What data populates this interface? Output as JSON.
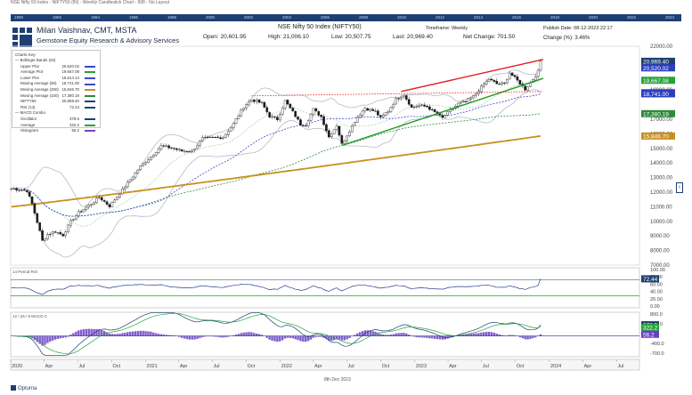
{
  "top_caption": "NSE Nifty 50 Index - NIFTY50 (IN) - Weekly Candlestick Chart - 998 - No Layout",
  "year_bar": [
    "1990",
    "1992",
    "1994",
    "1996",
    "1998",
    "2000",
    "2002",
    "2004",
    "2006",
    "2008",
    "2010",
    "2012",
    "2014",
    "2016",
    "2018",
    "2020",
    "2022",
    "2024"
  ],
  "header": {
    "author": "Milan Vaishnav, CMT, MSTA",
    "firm": "Gemstone Equity Research & Advisory Services",
    "open": "Open: 20,601.95",
    "high": "High: 21,006.10",
    "low": "Low: 20,507.75",
    "last": "Last: 20,969.40",
    "net_change": "Net Change: 701.50",
    "title": "NSE Nifty 50 Index (NIFTY50)",
    "timeframe": "Timeframe: Weekly",
    "publish_date": "Publish Date: 08-12-2023 22:17",
    "change_pct": "Change (%): 3.46%"
  },
  "legend": {
    "title": "Charts Key",
    "groups": [
      {
        "name": "Bollinger Bands (20)",
        "rows": [
          {
            "label": "Upper Plot",
            "value": "20,520.02",
            "color": "#3b47c8"
          },
          {
            "label": "Average Plot",
            "value": "19,667.08",
            "color": "#24a33a"
          },
          {
            "label": "Lower Plot",
            "value": "18,814.14",
            "color": "#3b47c8"
          }
        ]
      },
      {
        "name": "",
        "rows": [
          {
            "label": "Moving Average (50)",
            "value": "18,741.00",
            "color": "#3b47c8"
          },
          {
            "label": "Moving Average (200)",
            "value": "15,846.70",
            "color": "#c9901e"
          },
          {
            "label": "Moving Average (100)",
            "value": "17,380.19",
            "color": "#2e8b3a"
          },
          {
            "label": "NIFTY50",
            "value": "20,969.40",
            "color": "#1d3f73"
          },
          {
            "label": "RSI (14)",
            "value": "72.44",
            "color": "#1d3f73"
          }
        ]
      },
      {
        "name": "MACD Combo",
        "rows": [
          {
            "label": "Oscillator",
            "value": "378.5",
            "color": "#1d3f73"
          },
          {
            "label": "Average",
            "value": "322.2",
            "color": "#24a33a"
          },
          {
            "label": "Histogram",
            "value": "56.2",
            "color": "#7b3fc0"
          }
        ]
      }
    ]
  },
  "price_axis_labels": [
    {
      "text": "22000.00",
      "v": 22000
    },
    {
      "text": "20969.40",
      "v": 20969.4
    },
    {
      "text": "19000.00",
      "v": 19000
    },
    {
      "text": "17000.00",
      "v": 17000
    },
    {
      "text": "16000.00",
      "v": 16000
    },
    {
      "text": "15000.00",
      "v": 15000
    },
    {
      "text": "14000.00",
      "v": 14000
    },
    {
      "text": "13000.00",
      "v": 13000
    },
    {
      "text": "12000.00",
      "v": 12000
    },
    {
      "text": "11000.00",
      "v": 11000
    },
    {
      "text": "10000.00",
      "v": 10000
    },
    {
      "text": "9000.00",
      "v": 9000
    },
    {
      "text": "8000.00",
      "v": 8000
    },
    {
      "text": "7000.00",
      "v": 7000
    }
  ],
  "price_tags": [
    {
      "text": "20,969.40",
      "v": 20969.4,
      "color": "#1d3f73"
    },
    {
      "text": "20,520.02",
      "v": 20520.02,
      "color": "#2d3fbf"
    },
    {
      "text": "19,667.08",
      "v": 19667.08,
      "color": "#24a33a"
    },
    {
      "text": "18,814.14",
      "v": 18814.14,
      "color": "#2d3fbf"
    },
    {
      "text": "18,741.00",
      "v": 18741,
      "color": "#2d3fbf"
    },
    {
      "text": "17,380.19",
      "v": 17380.19,
      "color": "#2e8b3a"
    },
    {
      "text": "15,846.70",
      "v": 15846.7,
      "color": "#c9901e"
    }
  ],
  "rsi_panel": {
    "label": "14 Period RSI",
    "axis": [
      "100.00",
      "80.00",
      "60.00",
      "40.00",
      "20.00",
      "0.00"
    ],
    "tag": "72.44"
  },
  "macd_panel": {
    "label": "12 / 26 / 9 MACD-C",
    "axis": [
      "800.0",
      "400.0",
      "0.0",
      "-400.0",
      "-700.0"
    ],
    "tags": [
      "378.5",
      "322.2",
      "56.2"
    ]
  },
  "time_axis": [
    "2020",
    "Apr",
    "Jul",
    "Oct",
    "2021",
    "Apr",
    "Jul",
    "Oct",
    "2022",
    "Apr",
    "Jul",
    "Oct",
    "2023",
    "Apr",
    "Jul",
    "Oct",
    "2024",
    "Apr",
    "Jul"
  ],
  "footer": {
    "date": "8th Dec 2023",
    "brand": "Optuma"
  },
  "chart_data": {
    "type": "candlestick",
    "title": "NSE Nifty 50 Index (NIFTY50)",
    "timeframe": "weekly",
    "x_range": [
      "2020-01-01",
      "2024-09-01"
    ],
    "ylim": [
      7000,
      22000
    ],
    "ohlc_last": {
      "open": 20601.95,
      "high": 21006.1,
      "low": 20507.75,
      "close": 20969.4
    },
    "close_path": [
      {
        "d": "2020-01-03",
        "c": 12250
      },
      {
        "d": "2020-01-24",
        "c": 12200
      },
      {
        "d": "2020-02-14",
        "c": 12100
      },
      {
        "d": "2020-02-28",
        "c": 11200
      },
      {
        "d": "2020-03-13",
        "c": 9950
      },
      {
        "d": "2020-03-27",
        "c": 8660
      },
      {
        "d": "2020-04-10",
        "c": 9100
      },
      {
        "d": "2020-05-01",
        "c": 9300
      },
      {
        "d": "2020-05-22",
        "c": 9050
      },
      {
        "d": "2020-06-12",
        "c": 9980
      },
      {
        "d": "2020-07-03",
        "c": 10600
      },
      {
        "d": "2020-07-31",
        "c": 11070
      },
      {
        "d": "2020-08-28",
        "c": 11650
      },
      {
        "d": "2020-09-25",
        "c": 11050
      },
      {
        "d": "2020-10-23",
        "c": 11930
      },
      {
        "d": "2020-11-20",
        "c": 12860
      },
      {
        "d": "2020-12-18",
        "c": 13760
      },
      {
        "d": "2021-01-15",
        "c": 14430
      },
      {
        "d": "2021-02-12",
        "c": 15160
      },
      {
        "d": "2021-03-12",
        "c": 15030
      },
      {
        "d": "2021-04-09",
        "c": 14830
      },
      {
        "d": "2021-05-07",
        "c": 14820
      },
      {
        "d": "2021-06-04",
        "c": 15670
      },
      {
        "d": "2021-07-02",
        "c": 15720
      },
      {
        "d": "2021-07-30",
        "c": 15760
      },
      {
        "d": "2021-08-27",
        "c": 16700
      },
      {
        "d": "2021-09-24",
        "c": 17850
      },
      {
        "d": "2021-10-15",
        "c": 18340
      },
      {
        "d": "2021-11-12",
        "c": 18100
      },
      {
        "d": "2021-12-03",
        "c": 17200
      },
      {
        "d": "2021-12-24",
        "c": 17000
      },
      {
        "d": "2022-01-14",
        "c": 18250
      },
      {
        "d": "2022-02-04",
        "c": 17500
      },
      {
        "d": "2022-02-25",
        "c": 16650
      },
      {
        "d": "2022-03-11",
        "c": 16630
      },
      {
        "d": "2022-04-01",
        "c": 17670
      },
      {
        "d": "2022-04-22",
        "c": 17170
      },
      {
        "d": "2022-05-13",
        "c": 15780
      },
      {
        "d": "2022-06-03",
        "c": 16580
      },
      {
        "d": "2022-06-17",
        "c": 15290
      },
      {
        "d": "2022-07-08",
        "c": 16220
      },
      {
        "d": "2022-07-29",
        "c": 17160
      },
      {
        "d": "2022-08-19",
        "c": 17760
      },
      {
        "d": "2022-09-16",
        "c": 17530
      },
      {
        "d": "2022-09-30",
        "c": 17090
      },
      {
        "d": "2022-10-21",
        "c": 17580
      },
      {
        "d": "2022-11-11",
        "c": 18350
      },
      {
        "d": "2022-12-02",
        "c": 18700
      },
      {
        "d": "2022-12-23",
        "c": 17800
      },
      {
        "d": "2023-01-13",
        "c": 17960
      },
      {
        "d": "2023-02-03",
        "c": 17850
      },
      {
        "d": "2023-02-24",
        "c": 17470
      },
      {
        "d": "2023-03-17",
        "c": 17100
      },
      {
        "d": "2023-04-07",
        "c": 17600
      },
      {
        "d": "2023-04-28",
        "c": 18060
      },
      {
        "d": "2023-05-19",
        "c": 18200
      },
      {
        "d": "2023-06-09",
        "c": 18560
      },
      {
        "d": "2023-06-30",
        "c": 19190
      },
      {
        "d": "2023-07-21",
        "c": 19750
      },
      {
        "d": "2023-08-11",
        "c": 19430
      },
      {
        "d": "2023-09-01",
        "c": 19430
      },
      {
        "d": "2023-09-15",
        "c": 20190
      },
      {
        "d": "2023-10-06",
        "c": 19650
      },
      {
        "d": "2023-10-27",
        "c": 19050
      },
      {
        "d": "2023-11-17",
        "c": 19730
      },
      {
        "d": "2023-12-01",
        "c": 20270
      },
      {
        "d": "2023-12-08",
        "c": 20969
      }
    ],
    "overlays": [
      {
        "name": "Bollinger Upper (20)",
        "last": 20520.02
      },
      {
        "name": "Bollinger Average (20)",
        "last": 19667.08
      },
      {
        "name": "Bollinger Lower (20)",
        "last": 18814.14
      },
      {
        "name": "Moving Average (50)",
        "last": 18741.0
      },
      {
        "name": "Moving Average (100)",
        "last": 17380.19
      },
      {
        "name": "Moving Average (200)",
        "last": 15846.7
      }
    ],
    "trendlines": [
      {
        "name": "rising channel top",
        "color": "#e02020",
        "from": {
          "d": "2022-11-25",
          "v": 18900
        },
        "to": {
          "d": "2023-12-15",
          "v": 21100
        }
      },
      {
        "name": "rising channel support",
        "color": "#1f9a1f",
        "from": {
          "d": "2022-06-17",
          "v": 15200
        },
        "to": {
          "d": "2023-12-15",
          "v": 19800
        }
      },
      {
        "name": "horizontal resistance",
        "color": "#e02020",
        "style": "dotted",
        "from": {
          "d": "2021-10-15",
          "v": 18600
        },
        "to": {
          "d": "2023-12-15",
          "v": 18900
        }
      }
    ],
    "rsi_14_last": 72.44,
    "macd": {
      "oscillator": 378.5,
      "average": 322.2,
      "histogram": 56.2
    }
  }
}
